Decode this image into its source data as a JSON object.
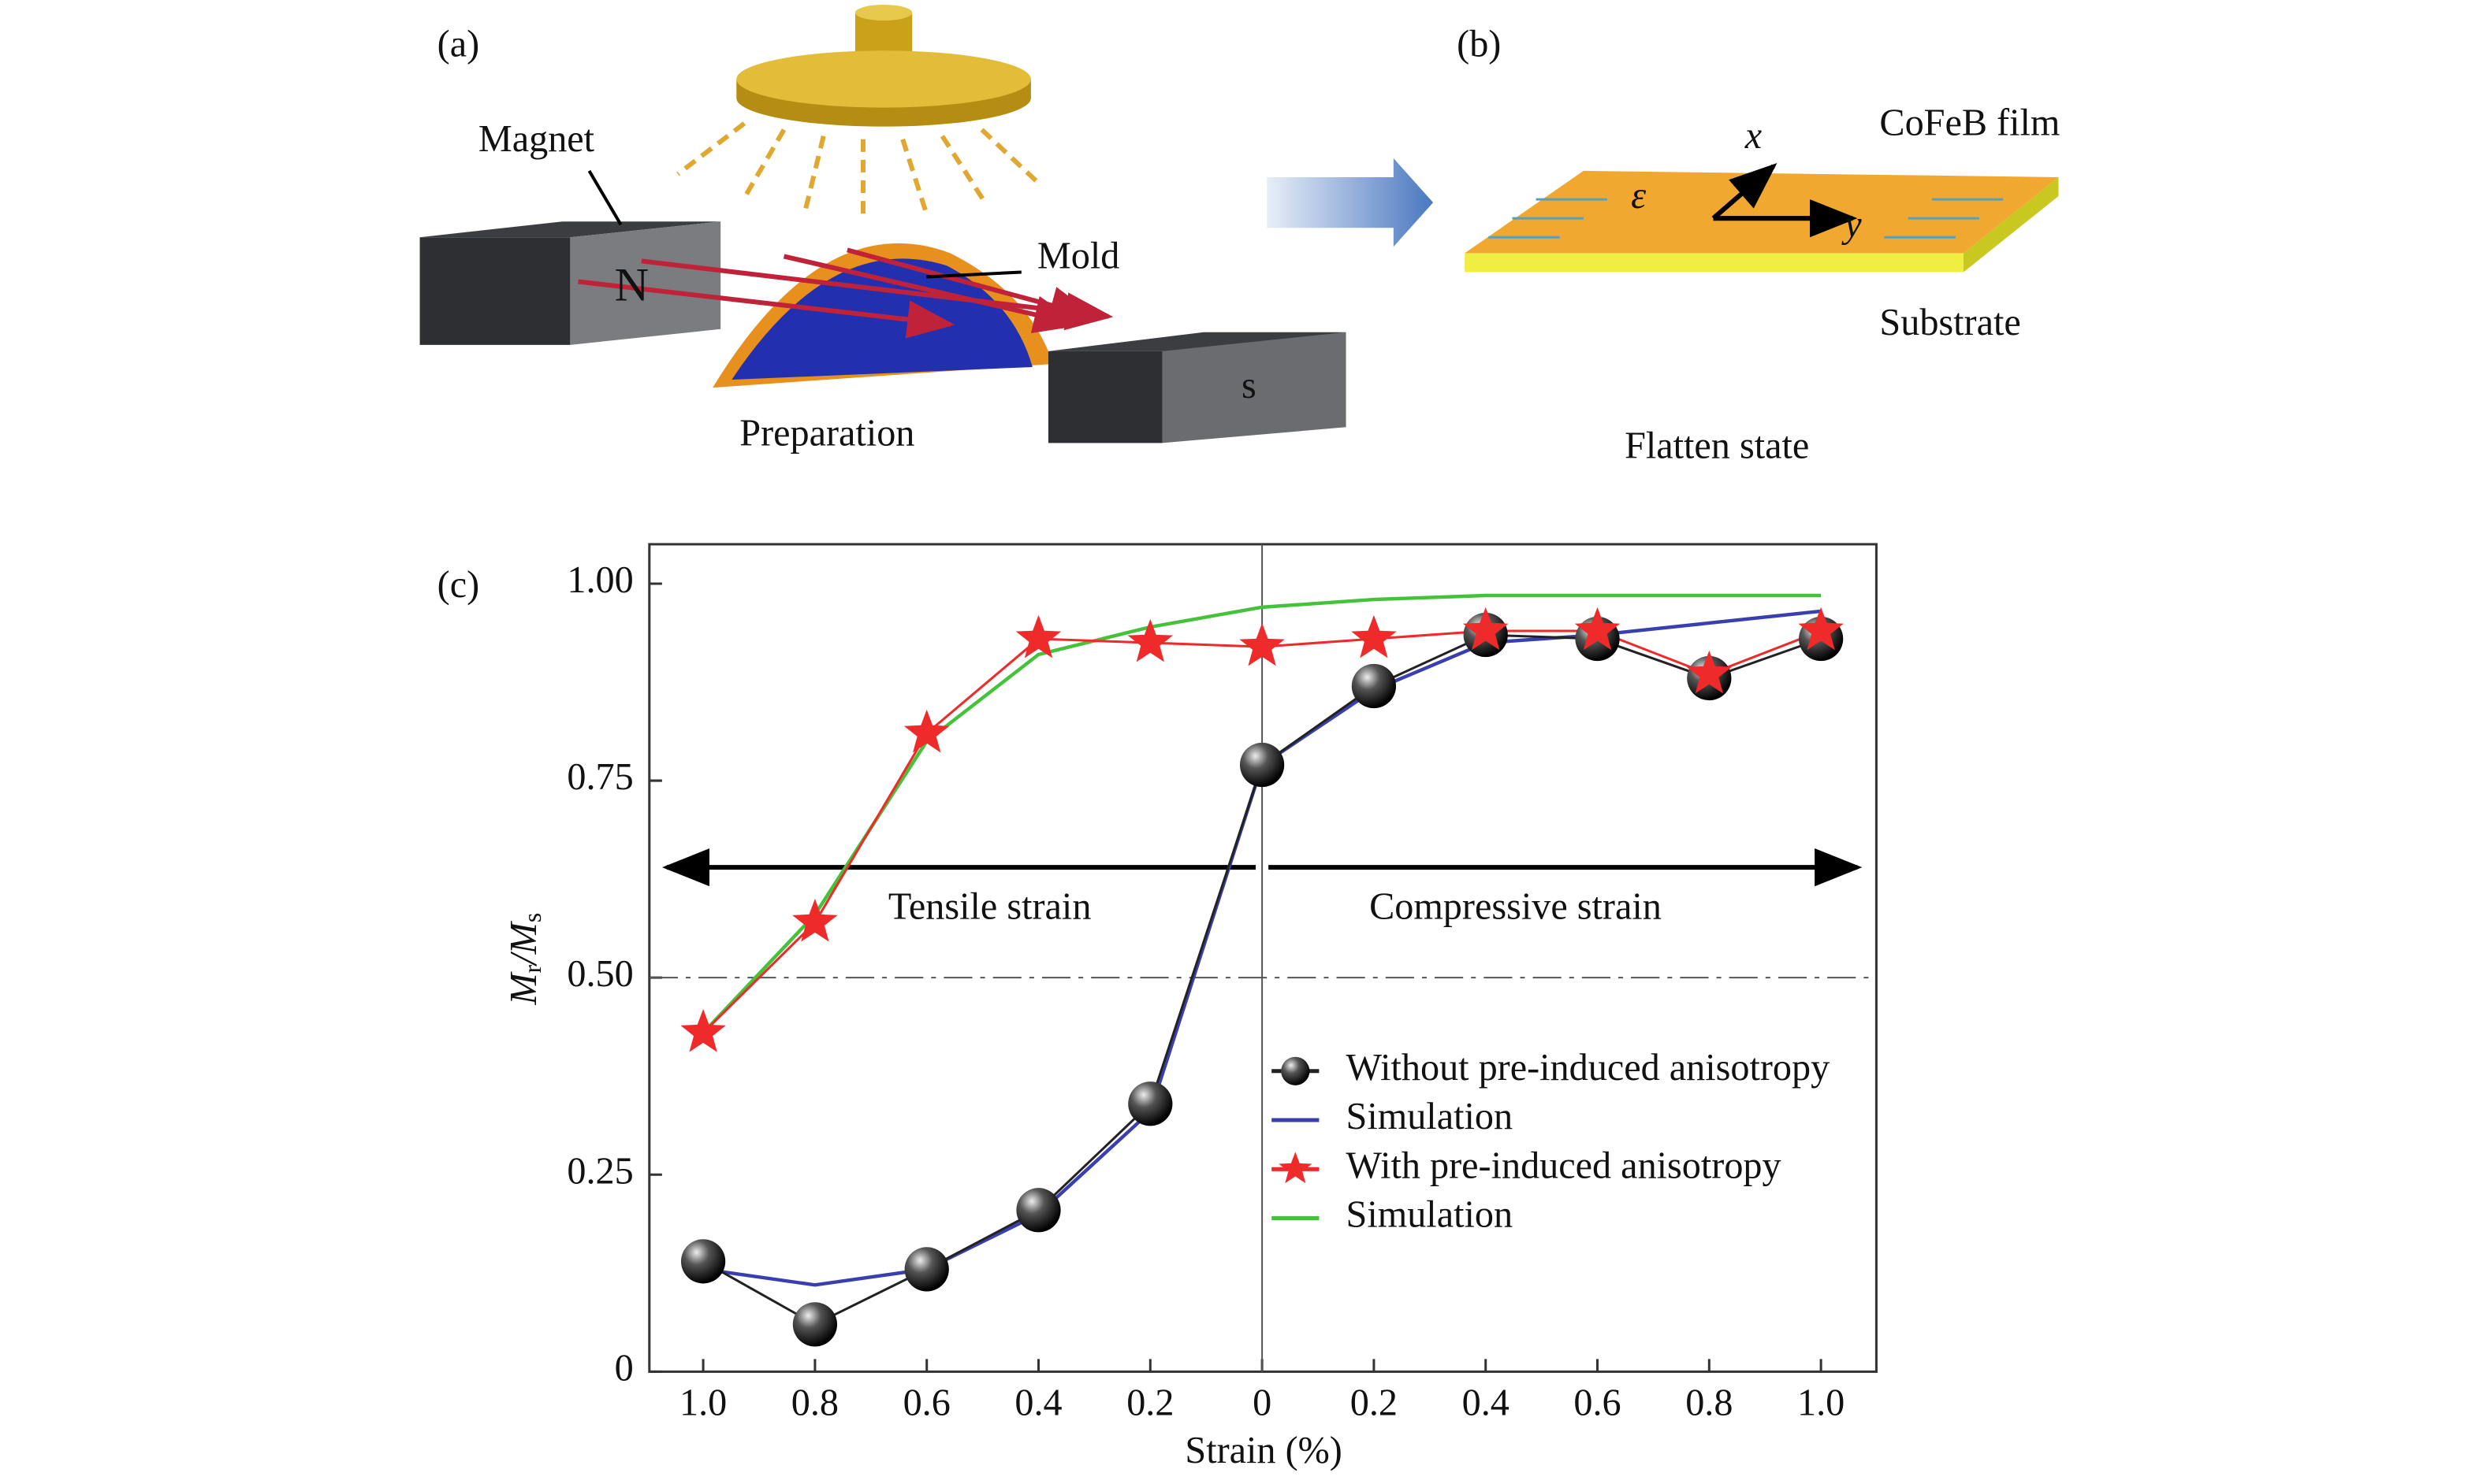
{
  "panels": {
    "a": {
      "label": "(a)",
      "magnet": "Magnet",
      "north": "N",
      "mold": "Mold",
      "south": "s",
      "caption": "Preparation"
    },
    "b": {
      "label": "(b)",
      "x_axis": "x",
      "strain": "ε",
      "y_axis": "y",
      "film": "CoFeB film",
      "substrate": "Substrate",
      "caption": "Flatten state"
    },
    "c": {
      "label": "(c)"
    }
  },
  "chart_data": {
    "type": "line",
    "xlabel": "Strain (%)",
    "ylabel_parts": [
      "M",
      "r",
      "/M",
      "s"
    ],
    "categories": [
      "1.0",
      "0.8",
      "0.6",
      "0.4",
      "0.2",
      "0",
      "0.2",
      "0.4",
      "0.6",
      "0.8",
      "1.0"
    ],
    "series": [
      {
        "name": "Without pre-induced anisotropy",
        "color": "#222222",
        "marker": "sphere",
        "values": [
          0.14,
          0.06,
          0.13,
          0.205,
          0.34,
          0.77,
          0.87,
          0.935,
          0.93,
          0.88,
          0.93
        ]
      },
      {
        "name": "Simulation",
        "color": "#3a3fb0",
        "marker": "none",
        "values": [
          0.13,
          0.11,
          0.13,
          0.2,
          0.33,
          0.77,
          0.865,
          0.925,
          0.935,
          0.95,
          0.965
        ]
      },
      {
        "name": "With pre-induced anisotropy",
        "color": "#ee2a2a",
        "marker": "star",
        "values": [
          0.43,
          0.57,
          0.81,
          0.93,
          0.925,
          0.92,
          0.93,
          0.94,
          0.94,
          0.885,
          0.94
        ]
      },
      {
        "name": "Simulation",
        "color": "#44c23a",
        "marker": "none",
        "values": [
          0.43,
          0.58,
          0.8,
          0.91,
          0.945,
          0.97,
          0.98,
          0.985,
          0.985,
          0.985,
          0.985
        ]
      }
    ],
    "ylim": [
      0,
      1.05
    ],
    "yticks": [
      0,
      {
        "value": 0.25,
        "label": "0.25"
      },
      {
        "value": 0.5,
        "label": "0.50"
      },
      {
        "value": 0.75,
        "label": "0.75"
      },
      {
        "value": 1,
        "label": "1.00"
      }
    ],
    "reference_line": 0.5,
    "annotations": {
      "left": "Tensile strain",
      "right": "Compressive strain",
      "y": 0.64
    },
    "legend": "lower right"
  }
}
